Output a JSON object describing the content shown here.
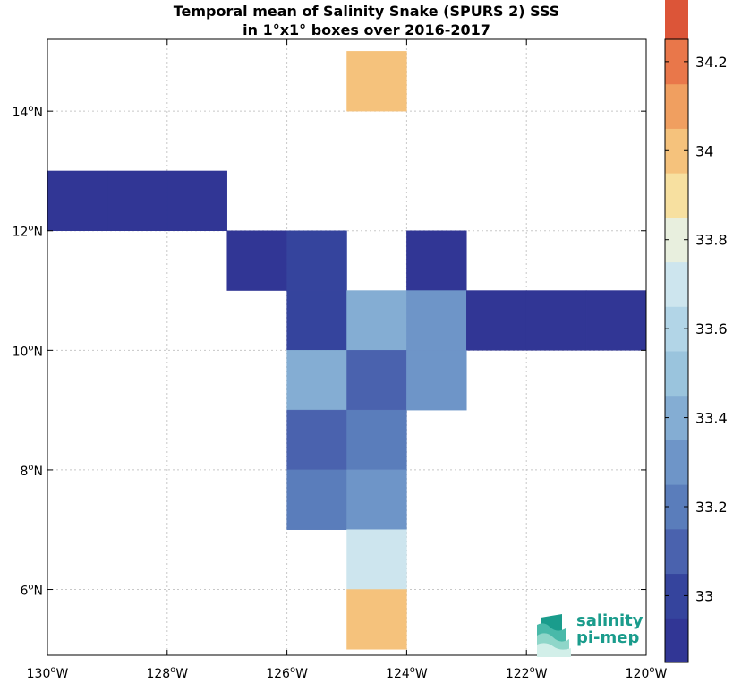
{
  "title": {
    "line1": "Temporal mean of Salinity Snake (SPURS 2) SSS",
    "line2": "in 1°x1° boxes over 2016-2017"
  },
  "map": {
    "lon_range": [
      -130,
      -120
    ],
    "lat_range": [
      4.9,
      15.2
    ],
    "grid": true,
    "x_ticks": [
      {
        "value": -130,
        "label": "130",
        "suffix": "W"
      },
      {
        "value": -128,
        "label": "128",
        "suffix": "W"
      },
      {
        "value": -126,
        "label": "126",
        "suffix": "W"
      },
      {
        "value": -124,
        "label": "124",
        "suffix": "W"
      },
      {
        "value": -122,
        "label": "122",
        "suffix": "W"
      },
      {
        "value": -120,
        "label": "120",
        "suffix": "W"
      }
    ],
    "y_ticks": [
      {
        "value": 6,
        "label": "6",
        "suffix": "N"
      },
      {
        "value": 8,
        "label": "8",
        "suffix": "N"
      },
      {
        "value": 10,
        "label": "10",
        "suffix": "N"
      },
      {
        "value": 12,
        "label": "12",
        "suffix": "N"
      },
      {
        "value": 14,
        "label": "14",
        "suffix": "N"
      }
    ]
  },
  "chart_data": {
    "type": "heatmap",
    "cells": [
      {
        "lon": -125,
        "lat": 14,
        "value": 34.05
      },
      {
        "lon": -130,
        "lat": 12,
        "value": 32.9
      },
      {
        "lon": -129,
        "lat": 12,
        "value": 32.9
      },
      {
        "lon": -128,
        "lat": 12,
        "value": 32.9
      },
      {
        "lon": -127,
        "lat": 11,
        "value": 32.9
      },
      {
        "lon": -126,
        "lat": 11,
        "value": 32.98
      },
      {
        "lon": -124,
        "lat": 11,
        "value": 32.9
      },
      {
        "lon": -126,
        "lat": 10,
        "value": 32.98
      },
      {
        "lon": -125,
        "lat": 10,
        "value": 33.42
      },
      {
        "lon": -124,
        "lat": 10,
        "value": 33.32
      },
      {
        "lon": -123,
        "lat": 10,
        "value": 32.9
      },
      {
        "lon": -122,
        "lat": 10,
        "value": 32.9
      },
      {
        "lon": -121,
        "lat": 10,
        "value": 32.9
      },
      {
        "lon": -126,
        "lat": 9,
        "value": 33.42
      },
      {
        "lon": -125,
        "lat": 9,
        "value": 33.08
      },
      {
        "lon": -124,
        "lat": 9,
        "value": 33.32
      },
      {
        "lon": -126,
        "lat": 8,
        "value": 33.08
      },
      {
        "lon": -125,
        "lat": 8,
        "value": 33.22
      },
      {
        "lon": -126,
        "lat": 7,
        "value": 33.22
      },
      {
        "lon": -125,
        "lat": 7,
        "value": 33.32
      },
      {
        "lon": -125,
        "lat": 6,
        "value": 33.72
      },
      {
        "lon": -125,
        "lat": 5,
        "value": 34.05
      }
    ],
    "colorbar": {
      "min": 32.85,
      "max": 34.25,
      "step": 0.1,
      "ticks": [
        33,
        33.2,
        33.4,
        33.6,
        33.8,
        34,
        34.2
      ],
      "tick_labels": [
        "33",
        "33.2",
        "33.4",
        "33.6",
        "33.8",
        "34",
        "34.2"
      ],
      "colors": [
        "#313695",
        "#35449d",
        "#4a62ae",
        "#5a7dbb",
        "#6e95c8",
        "#84add3",
        "#9ac4dd",
        "#b2d5e7",
        "#cde5ee",
        "#e8efde",
        "#f7e0a0",
        "#f5c27c",
        "#f09f60",
        "#e9774a",
        "#dc5538",
        "#d0392c",
        "#c22328",
        "#b10d26"
      ]
    }
  },
  "logo": {
    "line1": "salinity",
    "line2": "pi-mep",
    "color": "#1a9c8c"
  }
}
